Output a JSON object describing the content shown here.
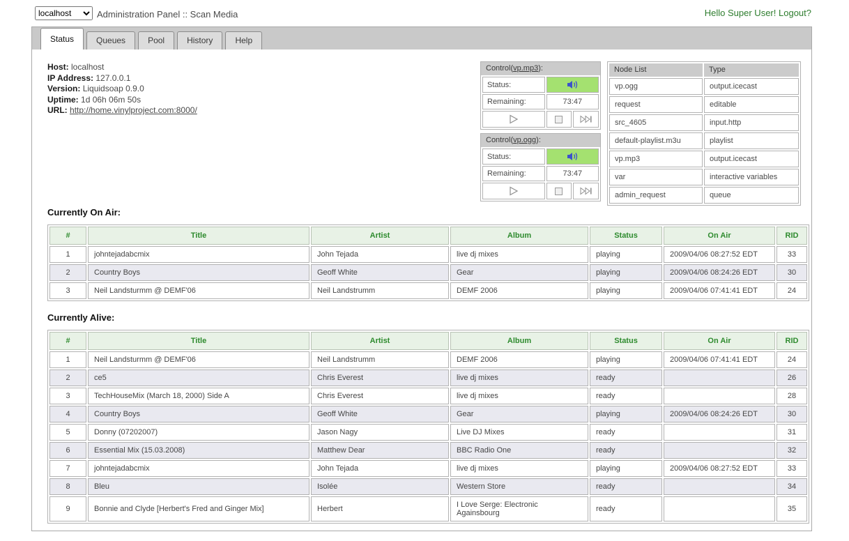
{
  "topbar": {
    "host_select": "localhost",
    "title": "Administration Panel :: Scan Media",
    "greeting": "Hello Super User!",
    "logout": "Logout?"
  },
  "tabs": [
    {
      "label": "Status",
      "active": true
    },
    {
      "label": "Queues",
      "active": false
    },
    {
      "label": "Pool",
      "active": false
    },
    {
      "label": "History",
      "active": false
    },
    {
      "label": "Help",
      "active": false
    }
  ],
  "host_info": {
    "host_label": "Host:",
    "host_value": "localhost",
    "ip_label": "IP Address:",
    "ip_value": "127.0.0.1",
    "version_label": "Version:",
    "version_value": "Liquidsoap 0.9.0",
    "uptime_label": "Uptime:",
    "uptime_value": "1d 06h 06m 50s",
    "url_label": "URL:",
    "url_value": "http://home.vinylproject.com:8000/"
  },
  "controls": [
    {
      "title_prefix": "Control(",
      "link": "vp.mp3",
      "title_suffix": "):",
      "status_label": "Status:",
      "status": "on",
      "remaining_label": "Remaining:",
      "remaining": "73:47"
    },
    {
      "title_prefix": "Control(",
      "link": "vp.ogg",
      "title_suffix": "):",
      "status_label": "Status:",
      "status": "on",
      "remaining_label": "Remaining:",
      "remaining": "73:47"
    }
  ],
  "node_list": {
    "headers": [
      "Node List",
      "Type"
    ],
    "rows": [
      [
        "vp.ogg",
        "output.icecast"
      ],
      [
        "request",
        "editable"
      ],
      [
        "src_4605",
        "input.http"
      ],
      [
        "default-playlist.m3u",
        "playlist"
      ],
      [
        "vp.mp3",
        "output.icecast"
      ],
      [
        "var",
        "interactive variables"
      ],
      [
        "admin_request",
        "queue"
      ]
    ]
  },
  "on_air": {
    "heading": "Currently On Air:",
    "headers": [
      "#",
      "Title",
      "Artist",
      "Album",
      "Status",
      "On Air",
      "RID"
    ],
    "rows": [
      [
        "1",
        "johntejadabcmix",
        "John Tejada",
        "live dj mixes",
        "playing",
        "2009/04/06 08:27:52 EDT",
        "33"
      ],
      [
        "2",
        "Country Boys",
        "Geoff White",
        "Gear",
        "playing",
        "2009/04/06 08:24:26 EDT",
        "30"
      ],
      [
        "3",
        "Neil Landsturmm @ DEMF'06",
        "Neil Landstrumm",
        "DEMF 2006",
        "playing",
        "2009/04/06 07:41:41 EDT",
        "24"
      ]
    ]
  },
  "alive": {
    "heading": "Currently Alive:",
    "headers": [
      "#",
      "Title",
      "Artist",
      "Album",
      "Status",
      "On Air",
      "RID"
    ],
    "rows": [
      [
        "1",
        "Neil Landsturmm @ DEMF'06",
        "Neil Landstrumm",
        "DEMF 2006",
        "playing",
        "2009/04/06 07:41:41 EDT",
        "24"
      ],
      [
        "2",
        "ce5",
        "Chris Everest",
        "live dj mixes",
        "ready",
        "",
        "26"
      ],
      [
        "3",
        "TechHouseMix (March 18, 2000) Side A",
        "Chris Everest",
        "live dj mixes",
        "ready",
        "",
        "28"
      ],
      [
        "4",
        "Country Boys",
        "Geoff White",
        "Gear",
        "playing",
        "2009/04/06 08:24:26 EDT",
        "30"
      ],
      [
        "5",
        "Donny (07202007)",
        "Jason Nagy",
        "Live DJ Mixes",
        "ready",
        "",
        "31"
      ],
      [
        "6",
        "Essential Mix (15.03.2008)",
        "Matthew Dear",
        "BBC Radio One",
        "ready",
        "",
        "32"
      ],
      [
        "7",
        "johntejadabcmix",
        "John Tejada",
        "live dj mixes",
        "playing",
        "2009/04/06 08:27:52 EDT",
        "33"
      ],
      [
        "8",
        "Bleu",
        "Isolée",
        "Western Store",
        "ready",
        "",
        "34"
      ],
      [
        "9",
        "Bonnie and Clyde [Herbert's Fred and Ginger Mix]",
        "Herbert",
        "I Love Serge: Electronic Againsbourg",
        "ready",
        "",
        "35"
      ]
    ]
  },
  "colors": {
    "accent_green_text": "#2e8b2e",
    "status_on_bg": "#a4e170",
    "table_header_bg": "#e8f2e6",
    "row_alt_bg": "#e9e9f0",
    "chrome_gray": "#c9c9c9",
    "speaker_blue": "#3c52cc"
  }
}
